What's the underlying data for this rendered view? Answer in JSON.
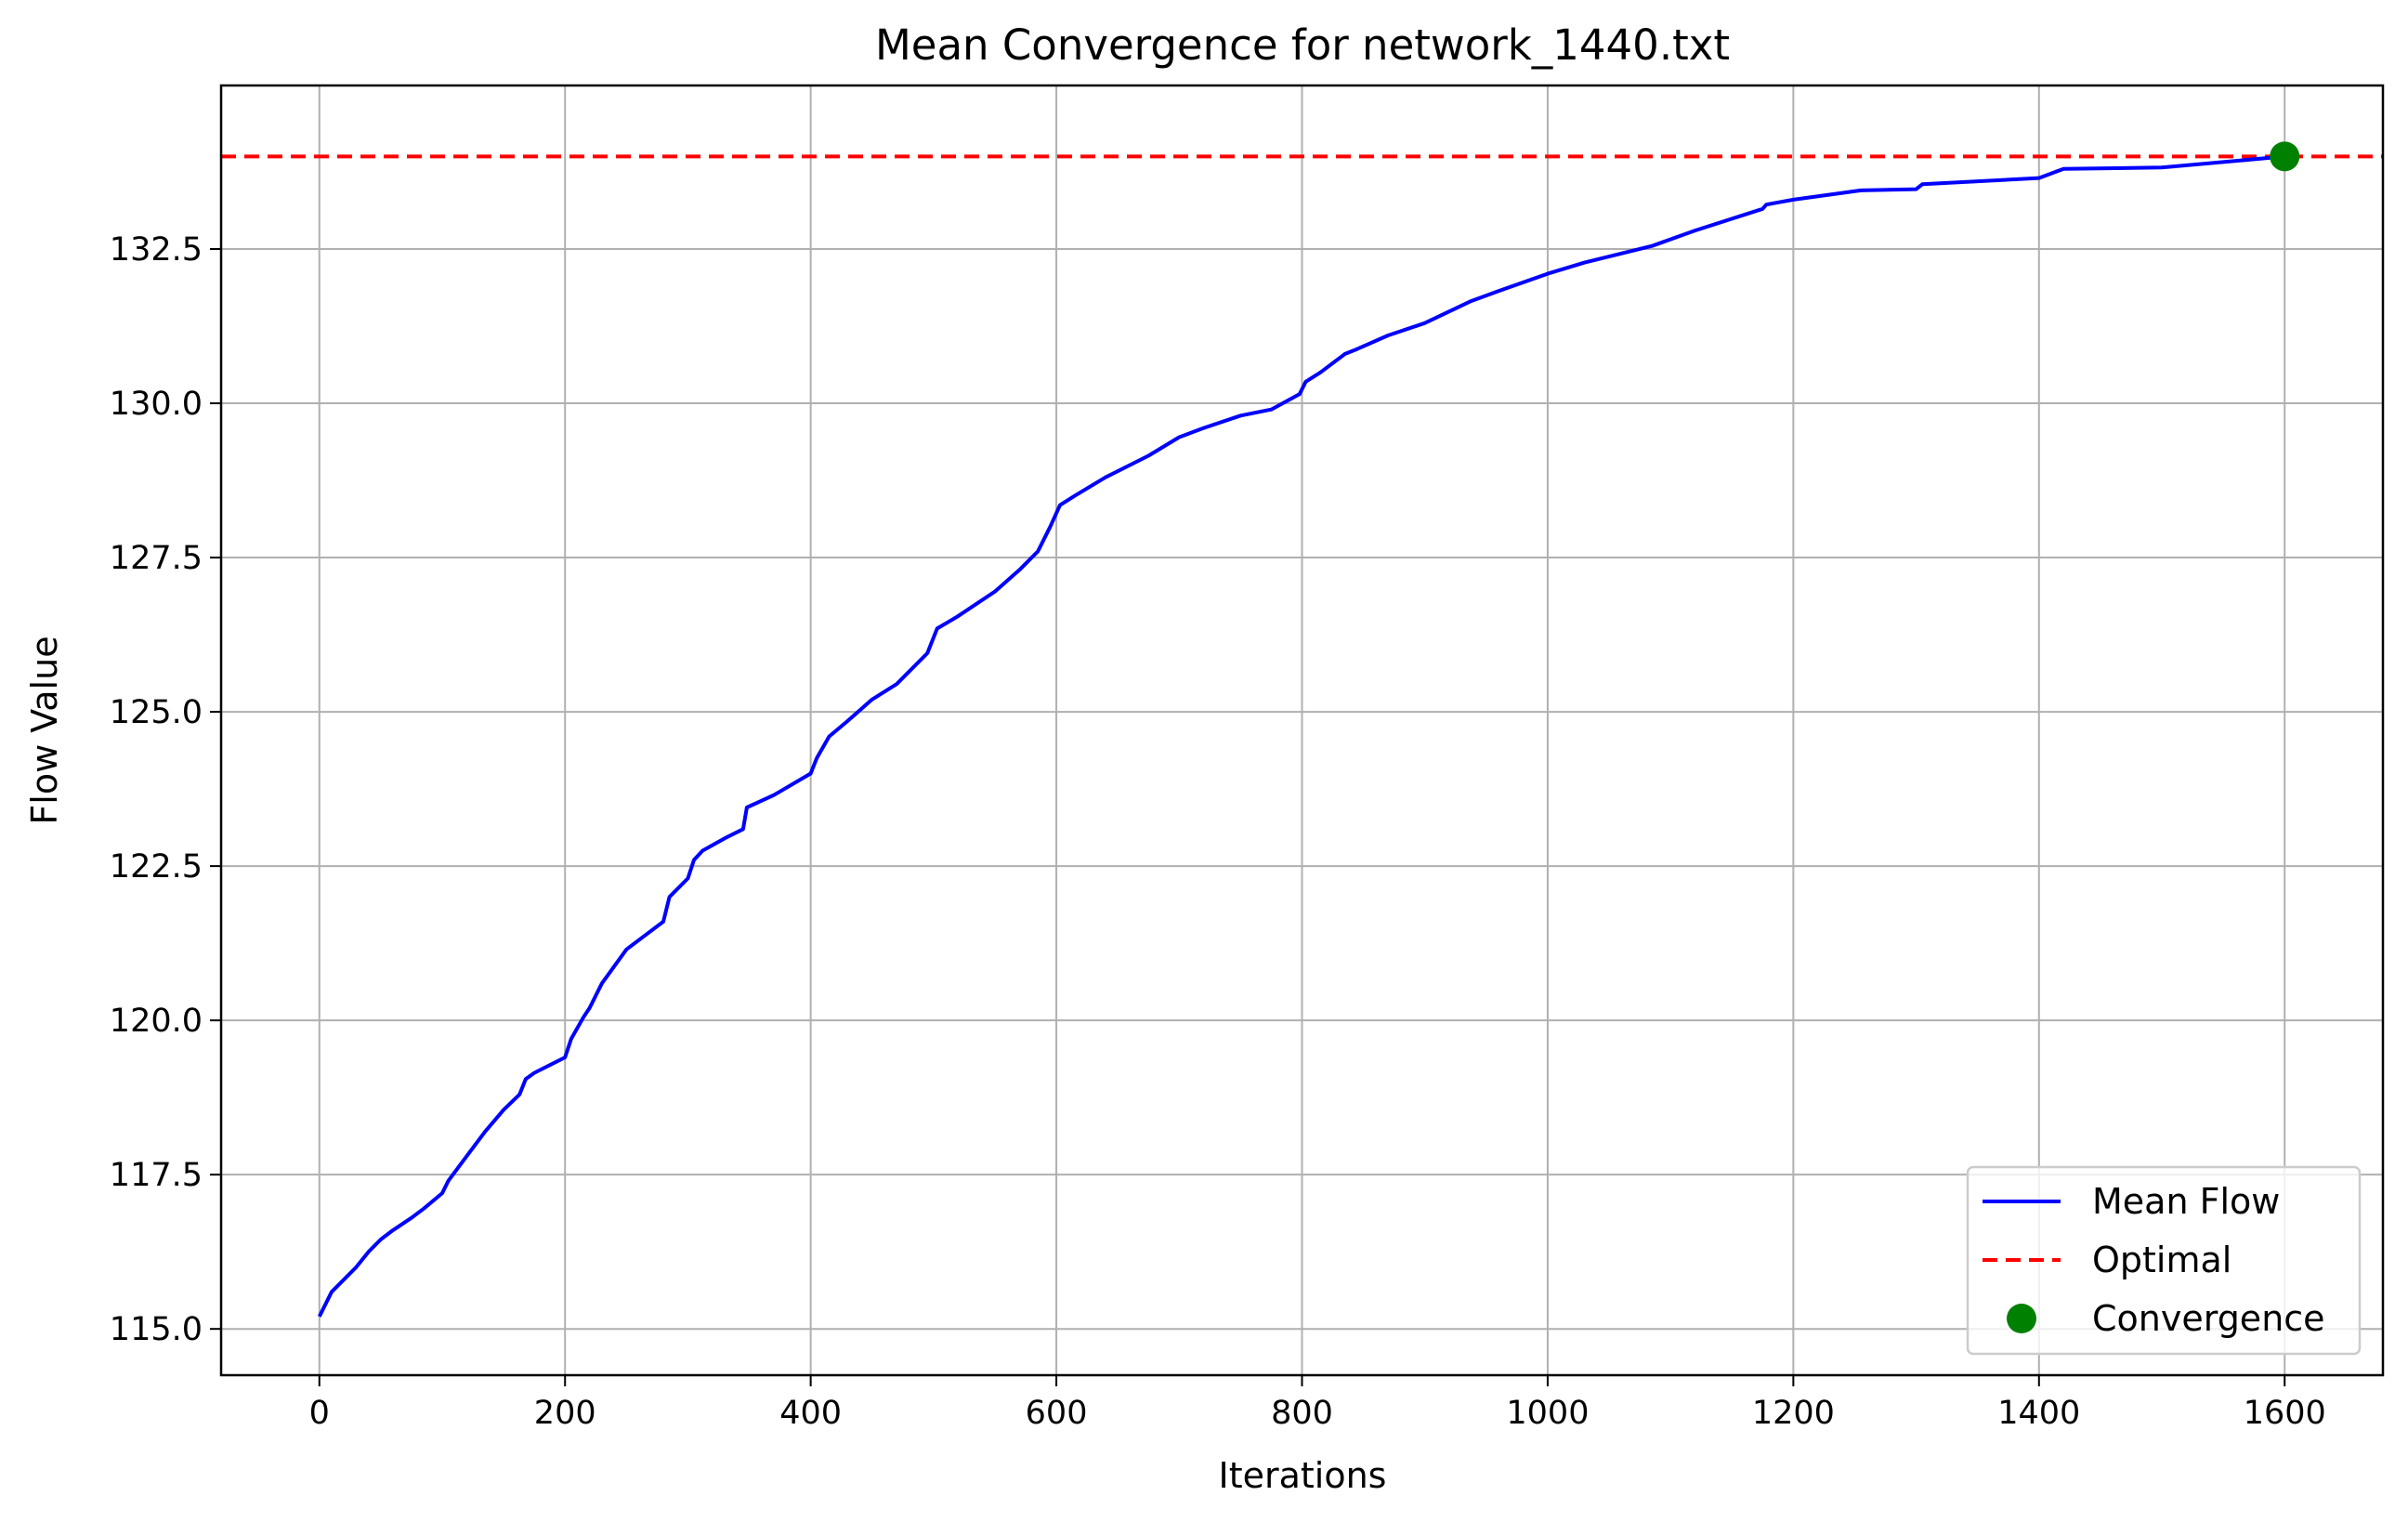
{
  "chart_data": {
    "type": "line",
    "title": "Mean Convergence for network_1440.txt",
    "xlabel": "Iterations",
    "ylabel": "Flow Value",
    "xlim": [
      -80,
      1680
    ],
    "ylim": [
      114.25,
      135.15
    ],
    "x_ticks": [
      0,
      200,
      400,
      600,
      800,
      1000,
      1200,
      1400,
      1600
    ],
    "y_ticks": [
      115.0,
      117.5,
      120.0,
      122.5,
      125.0,
      127.5,
      130.0,
      132.5
    ],
    "x_tick_labels": [
      "0",
      "200",
      "400",
      "600",
      "800",
      "1000",
      "1200",
      "1400",
      "1600"
    ],
    "y_tick_labels": [
      "115.0",
      "117.5",
      "120.0",
      "122.5",
      "125.0",
      "127.5",
      "130.0",
      "132.5"
    ],
    "grid": true,
    "legend_position": "bottom-right",
    "series": [
      {
        "name": "Mean Flow",
        "style": "solid",
        "color": "#0000ff",
        "points": [
          [
            0,
            115.2
          ],
          [
            10,
            115.6
          ],
          [
            20,
            115.8
          ],
          [
            30,
            116.0
          ],
          [
            40,
            116.25
          ],
          [
            50,
            116.45
          ],
          [
            60,
            116.6
          ],
          [
            75,
            116.8
          ],
          [
            85,
            116.95
          ],
          [
            100,
            117.2
          ],
          [
            105,
            117.4
          ],
          [
            120,
            117.8
          ],
          [
            135,
            118.2
          ],
          [
            150,
            118.55
          ],
          [
            163,
            118.8
          ],
          [
            168,
            119.05
          ],
          [
            175,
            119.15
          ],
          [
            200,
            119.4
          ],
          [
            205,
            119.7
          ],
          [
            215,
            120.05
          ],
          [
            220,
            120.2
          ],
          [
            230,
            120.6
          ],
          [
            250,
            121.15
          ],
          [
            270,
            121.45
          ],
          [
            280,
            121.6
          ],
          [
            285,
            122.0
          ],
          [
            300,
            122.3
          ],
          [
            305,
            122.6
          ],
          [
            312,
            122.75
          ],
          [
            330,
            122.95
          ],
          [
            345,
            123.1
          ],
          [
            348,
            123.45
          ],
          [
            370,
            123.65
          ],
          [
            400,
            124.0
          ],
          [
            405,
            124.25
          ],
          [
            415,
            124.6
          ],
          [
            430,
            124.85
          ],
          [
            450,
            125.2
          ],
          [
            470,
            125.45
          ],
          [
            495,
            125.95
          ],
          [
            503,
            126.35
          ],
          [
            520,
            126.55
          ],
          [
            550,
            126.95
          ],
          [
            570,
            127.3
          ],
          [
            585,
            127.6
          ],
          [
            595,
            128.0
          ],
          [
            603,
            128.35
          ],
          [
            615,
            128.5
          ],
          [
            640,
            128.8
          ],
          [
            675,
            129.15
          ],
          [
            700,
            129.45
          ],
          [
            720,
            129.6
          ],
          [
            750,
            129.8
          ],
          [
            775,
            129.9
          ],
          [
            798,
            130.15
          ],
          [
            803,
            130.35
          ],
          [
            815,
            130.5
          ],
          [
            835,
            130.8
          ],
          [
            845,
            130.88
          ],
          [
            870,
            131.1
          ],
          [
            900,
            131.3
          ],
          [
            937,
            131.65
          ],
          [
            960,
            131.82
          ],
          [
            1000,
            132.1
          ],
          [
            1030,
            132.28
          ],
          [
            1085,
            132.55
          ],
          [
            1120,
            132.8
          ],
          [
            1175,
            133.15
          ],
          [
            1178,
            133.22
          ],
          [
            1200,
            133.3
          ],
          [
            1255,
            133.45
          ],
          [
            1300,
            133.47
          ],
          [
            1305,
            133.55
          ],
          [
            1400,
            133.65
          ],
          [
            1420,
            133.8
          ],
          [
            1500,
            133.82
          ],
          [
            1600,
            134.0
          ]
        ]
      },
      {
        "name": "Optimal",
        "style": "dashed",
        "color": "#ff0000",
        "y": 134.0
      },
      {
        "name": "Convergence",
        "style": "marker",
        "color": "#008000",
        "points": [
          [
            1600,
            134.0
          ]
        ]
      }
    ]
  }
}
